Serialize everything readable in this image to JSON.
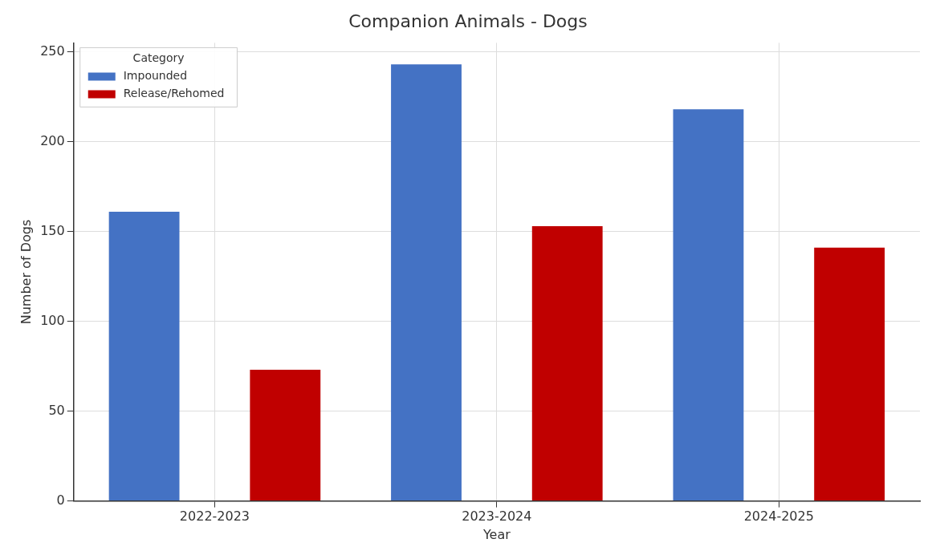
{
  "chart_data": {
    "type": "bar",
    "title": "Companion Animals - Dogs",
    "xlabel": "Year",
    "ylabel": "Number of Dogs",
    "legend_title": "Category",
    "categories": [
      "2022-2023",
      "2023-2024",
      "2024-2025"
    ],
    "series": [
      {
        "name": "Impounded",
        "color": "#4472c4",
        "values": [
          161,
          243,
          218
        ]
      },
      {
        "name": "Release/Rehomed",
        "color": "#c00000",
        "values": [
          73,
          153,
          141
        ]
      }
    ],
    "ylim": [
      0,
      255
    ],
    "yticks": [
      0,
      50,
      100,
      150,
      200,
      250
    ],
    "grid": true,
    "legend": "top left"
  }
}
